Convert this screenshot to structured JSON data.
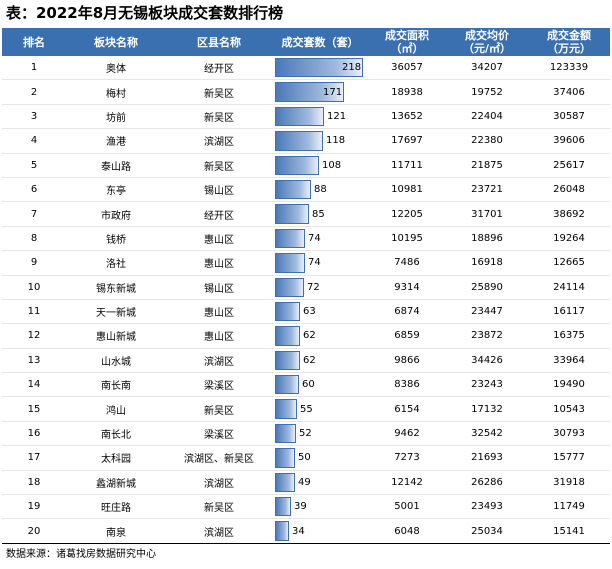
{
  "title": "表：2022年8月无锡板块成交套数排行榜",
  "headers": [
    "排名",
    "板块名称",
    "区县名称",
    "成交套数（套）",
    "成交面积（㎡）",
    "成交均价（元/㎡）",
    "成交金额（万元）"
  ],
  "header_lines": [
    [
      "排名"
    ],
    [
      "板块名称"
    ],
    [
      "区县名称"
    ],
    [
      "成交套数（套）"
    ],
    [
      "成交面积",
      "（㎡）"
    ],
    [
      "成交均价",
      "（元/㎡）"
    ],
    [
      "成交金额",
      "（万元）"
    ]
  ],
  "bar_max": 218,
  "rows": [
    {
      "rank": "1",
      "block": "奥体",
      "district": "经开区",
      "units": 218,
      "area": "36057",
      "price": "34207",
      "amount": "123339"
    },
    {
      "rank": "2",
      "block": "梅村",
      "district": "新吴区",
      "units": 171,
      "area": "18938",
      "price": "19752",
      "amount": "37406"
    },
    {
      "rank": "3",
      "block": "坊前",
      "district": "新吴区",
      "units": 121,
      "area": "13652",
      "price": "22404",
      "amount": "30587"
    },
    {
      "rank": "4",
      "block": "渔港",
      "district": "滨湖区",
      "units": 118,
      "area": "17697",
      "price": "22380",
      "amount": "39606"
    },
    {
      "rank": "5",
      "block": "泰山路",
      "district": "新吴区",
      "units": 108,
      "area": "11711",
      "price": "21875",
      "amount": "25617"
    },
    {
      "rank": "6",
      "block": "东亭",
      "district": "锡山区",
      "units": 88,
      "area": "10981",
      "price": "23721",
      "amount": "26048"
    },
    {
      "rank": "7",
      "block": "市政府",
      "district": "经开区",
      "units": 85,
      "area": "12205",
      "price": "31701",
      "amount": "38692"
    },
    {
      "rank": "8",
      "block": "钱桥",
      "district": "惠山区",
      "units": 74,
      "area": "10195",
      "price": "18896",
      "amount": "19264"
    },
    {
      "rank": "9",
      "block": "洛社",
      "district": "惠山区",
      "units": 74,
      "area": "7486",
      "price": "16918",
      "amount": "12665"
    },
    {
      "rank": "10",
      "block": "锡东新城",
      "district": "锡山区",
      "units": 72,
      "area": "9314",
      "price": "25890",
      "amount": "24114"
    },
    {
      "rank": "11",
      "block": "天一新城",
      "district": "惠山区",
      "units": 63,
      "area": "6874",
      "price": "23447",
      "amount": "16117"
    },
    {
      "rank": "12",
      "block": "惠山新城",
      "district": "惠山区",
      "units": 62,
      "area": "6859",
      "price": "23872",
      "amount": "16375"
    },
    {
      "rank": "13",
      "block": "山水城",
      "district": "滨湖区",
      "units": 62,
      "area": "9866",
      "price": "34426",
      "amount": "33964"
    },
    {
      "rank": "14",
      "block": "南长南",
      "district": "梁溪区",
      "units": 60,
      "area": "8386",
      "price": "23243",
      "amount": "19490"
    },
    {
      "rank": "15",
      "block": "鸿山",
      "district": "新吴区",
      "units": 55,
      "area": "6154",
      "price": "17132",
      "amount": "10543"
    },
    {
      "rank": "16",
      "block": "南长北",
      "district": "梁溪区",
      "units": 52,
      "area": "9462",
      "price": "32542",
      "amount": "30793"
    },
    {
      "rank": "17",
      "block": "太科园",
      "district": "滨湖区、新吴区",
      "units": 50,
      "area": "7273",
      "price": "21693",
      "amount": "15777"
    },
    {
      "rank": "18",
      "block": "蠡湖新城",
      "district": "滨湖区",
      "units": 49,
      "area": "12142",
      "price": "26286",
      "amount": "31918"
    },
    {
      "rank": "19",
      "block": "旺庄路",
      "district": "新吴区",
      "units": 39,
      "area": "5001",
      "price": "23493",
      "amount": "11749"
    },
    {
      "rank": "20",
      "block": "南泉",
      "district": "滨湖区",
      "units": 34,
      "area": "6048",
      "price": "25034",
      "amount": "15141"
    }
  ],
  "source": "数据来源：诸葛找房数据研究中心"
}
